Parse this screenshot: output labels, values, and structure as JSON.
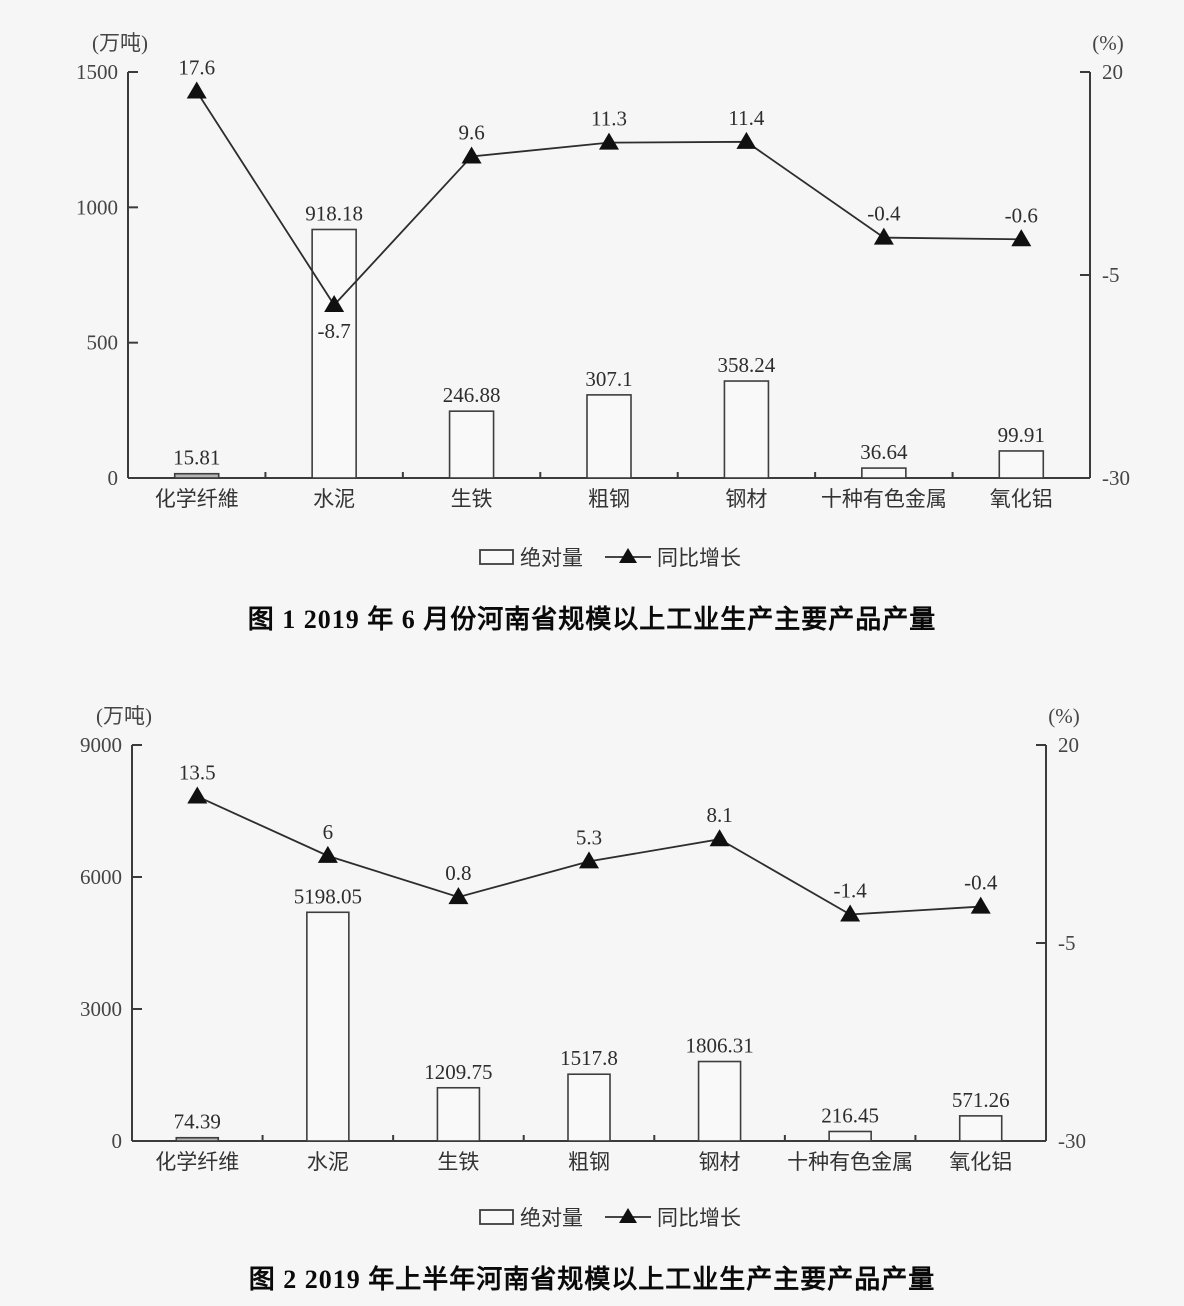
{
  "page": {
    "background": "#f6f6f7",
    "ink_color": "#2d2d2d",
    "axis_color": "#3b3b3b"
  },
  "chart_data": [
    {
      "type": "bar+line",
      "title": "图 1 2019 年 6 月份河南省规模以上工业生产主要产品产量",
      "categories": [
        "化学纤維",
        "水泥",
        "生铁",
        "粗钢",
        "钢材",
        "十种有色金属",
        "氧化铝"
      ],
      "left_axis": {
        "unit": "(万吨)",
        "range": [
          0,
          1500
        ],
        "ticks": [
          0,
          500,
          1000,
          1500
        ]
      },
      "right_axis": {
        "unit": "(%)",
        "range": [
          -30,
          20
        ],
        "ticks": [
          20,
          -5,
          -30
        ]
      },
      "series": [
        {
          "name": "绝对量",
          "kind": "bar",
          "axis": "left",
          "values": [
            15.81,
            918.18,
            246.88,
            307.1,
            358.24,
            36.64,
            99.91
          ],
          "labels": [
            "15.81",
            "918.18",
            "246.88",
            "307.1",
            "358.24",
            "36.64",
            "99.91"
          ]
        },
        {
          "name": "同比增长",
          "kind": "line",
          "axis": "right",
          "values": [
            17.6,
            -8.7,
            9.6,
            11.3,
            11.4,
            -0.4,
            -0.6
          ],
          "labels": [
            "17.6",
            "-8.7",
            "9.6",
            "11.3",
            "11.4",
            "-0.4",
            "-0.6"
          ],
          "label_below": [
            1
          ]
        }
      ],
      "legend_position": "bottom",
      "grid": false
    },
    {
      "type": "bar+line",
      "title": "图 2 2019 年上半年河南省规模以上工业生产主要产品产量",
      "categories": [
        "化学纤维",
        "水泥",
        "生铁",
        "粗钢",
        "钢材",
        "十种有色金属",
        "氧化铝"
      ],
      "left_axis": {
        "unit": "(万吨)",
        "range": [
          0,
          9000
        ],
        "ticks": [
          0,
          3000,
          6000,
          9000
        ]
      },
      "right_axis": {
        "unit": "(%)",
        "range": [
          -30,
          20
        ],
        "ticks": [
          20,
          -5,
          -30
        ]
      },
      "series": [
        {
          "name": "绝对量",
          "kind": "bar",
          "axis": "left",
          "values": [
            74.39,
            5198.05,
            1209.75,
            1517.8,
            1806.31,
            216.45,
            571.26
          ],
          "labels": [
            "74.39",
            "5198.05",
            "1209.75",
            "1517.8",
            "1806.31",
            "216.45",
            "571.26"
          ]
        },
        {
          "name": "同比增长",
          "kind": "line",
          "axis": "right",
          "values": [
            13.5,
            6,
            0.8,
            5.3,
            8.1,
            -1.4,
            -0.4
          ],
          "labels": [
            "13.5",
            "6",
            "0.8",
            "5.3",
            "8.1",
            "-1.4",
            "-0.4"
          ],
          "label_below": []
        }
      ],
      "legend_position": "bottom",
      "grid": false
    }
  ]
}
